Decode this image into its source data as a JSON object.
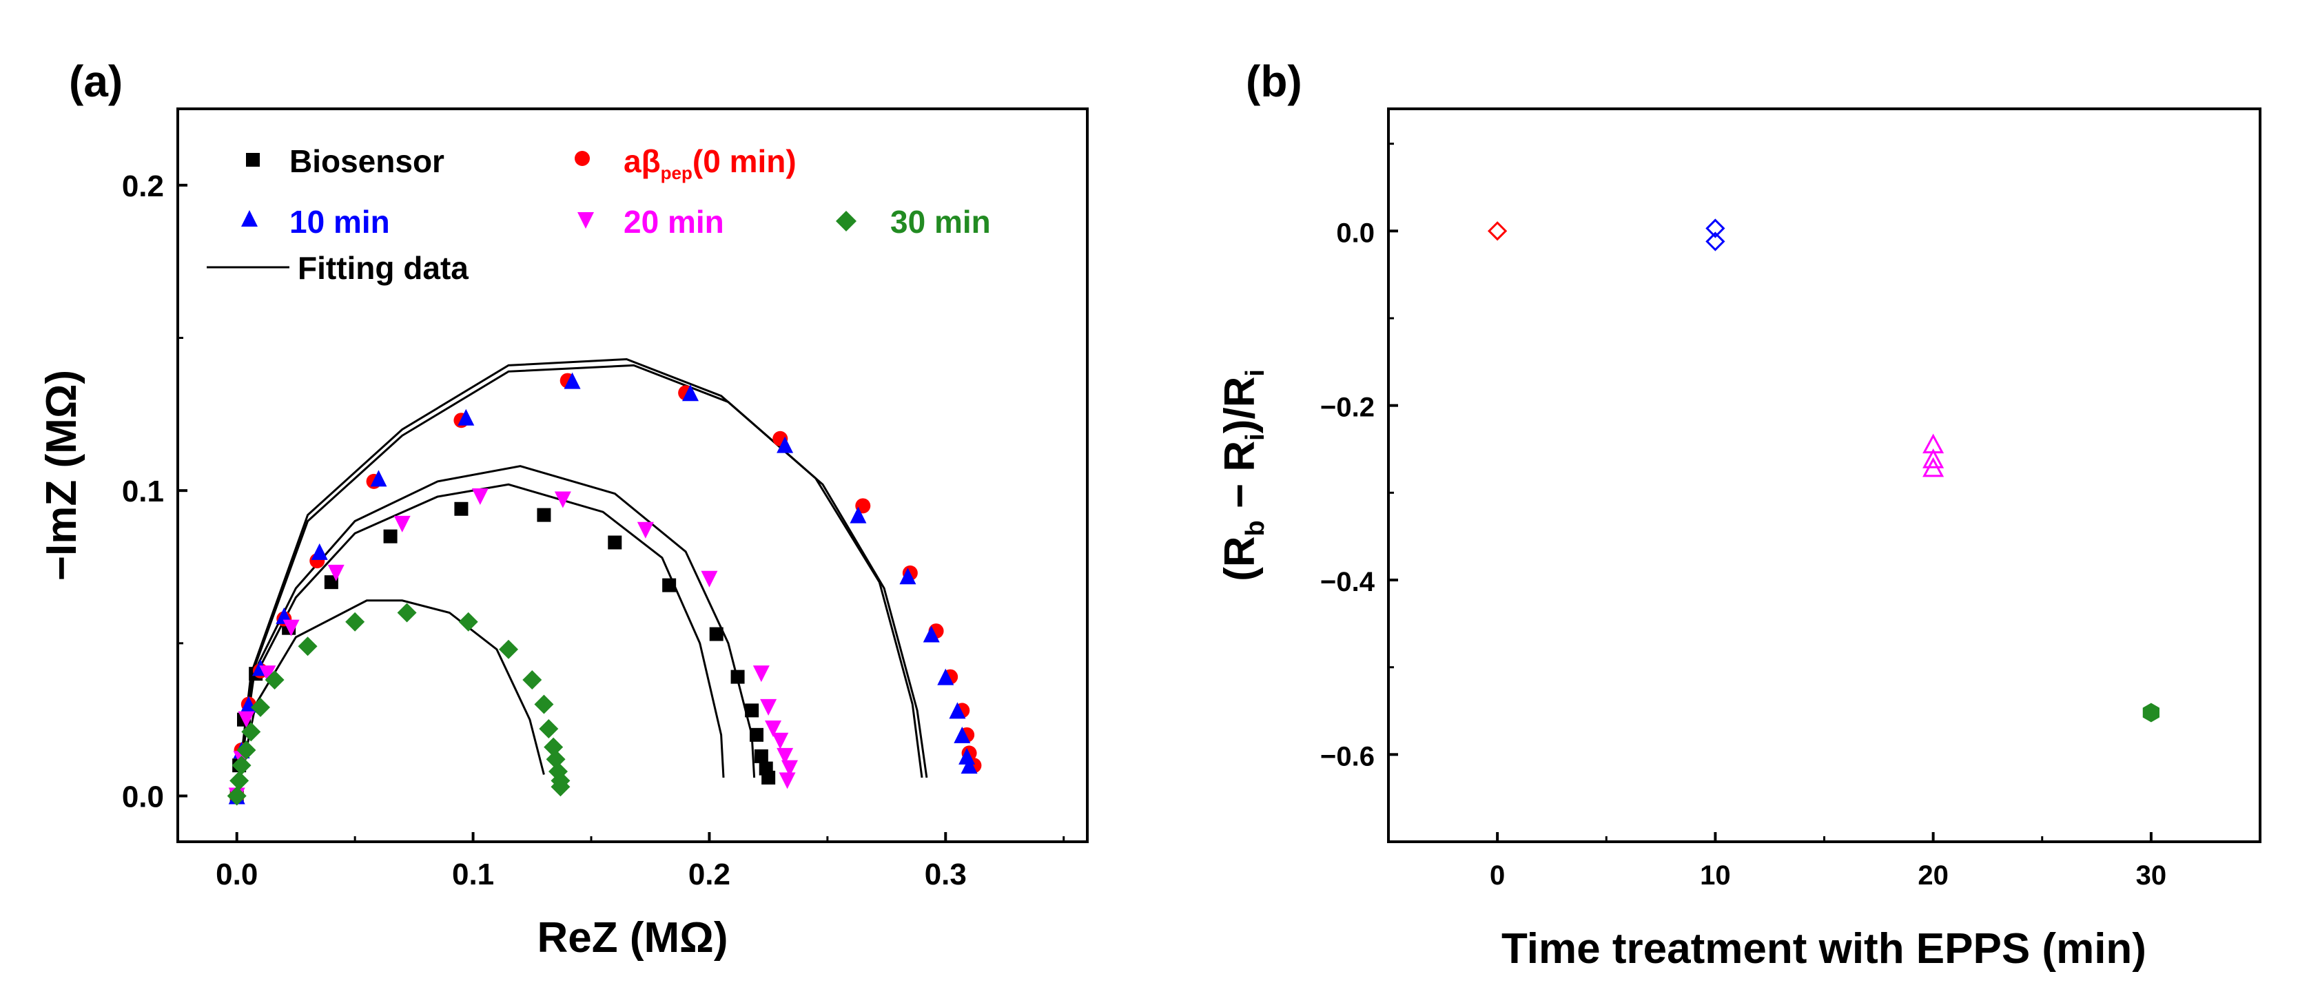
{
  "chart_data": [
    {
      "id": "a",
      "panel_label": "(a)",
      "type": "scatter",
      "xlabel": "ReZ (MΩ)",
      "ylabel": "−ImZ (MΩ)",
      "xlim": [
        -0.025,
        0.36
      ],
      "ylim": [
        -0.015,
        0.225
      ],
      "xticks": [
        0.0,
        0.1,
        0.2,
        0.3
      ],
      "xtick_labels": [
        "0.0",
        "0.1",
        "0.2",
        "0.3"
      ],
      "yticks": [
        0.0,
        0.1,
        0.2
      ],
      "ytick_labels": [
        "0.0",
        "0.1",
        "0.2"
      ],
      "legend": {
        "biosensor": "Biosensor",
        "abeta_main": "aβ",
        "abeta_sub": "pep",
        "abeta_tail": "(0 min)",
        "t10": "10 min",
        "t20": "20 min",
        "t30": "30 min",
        "fit": "Fitting data"
      },
      "series": [
        {
          "name": "Biosensor",
          "marker": "square",
          "color": "#000000",
          "points": [
            [
              0.0,
              0.0
            ],
            [
              0.001,
              0.01
            ],
            [
              0.003,
              0.025
            ],
            [
              0.008,
              0.04
            ],
            [
              0.022,
              0.055
            ],
            [
              0.04,
              0.07
            ],
            [
              0.065,
              0.085
            ],
            [
              0.095,
              0.094
            ],
            [
              0.13,
              0.092
            ],
            [
              0.16,
              0.083
            ],
            [
              0.183,
              0.069
            ],
            [
              0.203,
              0.053
            ],
            [
              0.212,
              0.039
            ],
            [
              0.218,
              0.028
            ],
            [
              0.22,
              0.02
            ],
            [
              0.222,
              0.013
            ],
            [
              0.224,
              0.009
            ],
            [
              0.225,
              0.006
            ]
          ]
        },
        {
          "name": "aβpep(0 min)",
          "marker": "circle",
          "color": "#ff0000",
          "points": [
            [
              0.0,
              0.0
            ],
            [
              0.002,
              0.015
            ],
            [
              0.005,
              0.03
            ],
            [
              0.01,
              0.041
            ],
            [
              0.02,
              0.058
            ],
            [
              0.034,
              0.077
            ],
            [
              0.058,
              0.103
            ],
            [
              0.095,
              0.123
            ],
            [
              0.14,
              0.136
            ],
            [
              0.19,
              0.132
            ],
            [
              0.23,
              0.117
            ],
            [
              0.265,
              0.095
            ],
            [
              0.285,
              0.073
            ],
            [
              0.296,
              0.054
            ],
            [
              0.302,
              0.039
            ],
            [
              0.307,
              0.028
            ],
            [
              0.309,
              0.02
            ],
            [
              0.31,
              0.014
            ],
            [
              0.312,
              0.01
            ]
          ]
        },
        {
          "name": "10 min",
          "marker": "triangle-up",
          "color": "#0000ff",
          "points": [
            [
              0.0,
              0.0
            ],
            [
              0.002,
              0.015
            ],
            [
              0.005,
              0.03
            ],
            [
              0.01,
              0.042
            ],
            [
              0.02,
              0.059
            ],
            [
              0.035,
              0.08
            ],
            [
              0.06,
              0.104
            ],
            [
              0.097,
              0.124
            ],
            [
              0.142,
              0.136
            ],
            [
              0.192,
              0.132
            ],
            [
              0.232,
              0.115
            ],
            [
              0.263,
              0.092
            ],
            [
              0.284,
              0.072
            ],
            [
              0.294,
              0.053
            ],
            [
              0.3,
              0.039
            ],
            [
              0.305,
              0.028
            ],
            [
              0.307,
              0.02
            ],
            [
              0.309,
              0.013
            ],
            [
              0.31,
              0.01
            ]
          ]
        },
        {
          "name": "20 min",
          "marker": "triangle-down",
          "color": "#ff00ff",
          "points": [
            [
              0.0,
              0.0
            ],
            [
              0.002,
              0.012
            ],
            [
              0.004,
              0.025
            ],
            [
              0.013,
              0.04
            ],
            [
              0.023,
              0.055
            ],
            [
              0.042,
              0.073
            ],
            [
              0.07,
              0.089
            ],
            [
              0.103,
              0.098
            ],
            [
              0.138,
              0.097
            ],
            [
              0.173,
              0.087
            ],
            [
              0.2,
              0.071
            ],
            [
              0.222,
              0.04
            ],
            [
              0.225,
              0.029
            ],
            [
              0.227,
              0.022
            ],
            [
              0.23,
              0.018
            ],
            [
              0.232,
              0.013
            ],
            [
              0.234,
              0.009
            ],
            [
              0.233,
              0.005
            ]
          ]
        },
        {
          "name": "30 min",
          "marker": "diamond",
          "color": "#228b22",
          "points": [
            [
              0.0,
              0.0
            ],
            [
              0.001,
              0.005
            ],
            [
              0.002,
              0.01
            ],
            [
              0.004,
              0.015
            ],
            [
              0.006,
              0.021
            ],
            [
              0.01,
              0.029
            ],
            [
              0.016,
              0.038
            ],
            [
              0.03,
              0.049
            ],
            [
              0.05,
              0.057
            ],
            [
              0.072,
              0.06
            ],
            [
              0.098,
              0.057
            ],
            [
              0.115,
              0.048
            ],
            [
              0.125,
              0.038
            ],
            [
              0.13,
              0.03
            ],
            [
              0.132,
              0.022
            ],
            [
              0.134,
              0.016
            ],
            [
              0.135,
              0.012
            ],
            [
              0.136,
              0.008
            ],
            [
              0.137,
              0.005
            ],
            [
              0.137,
              0.003
            ]
          ]
        }
      ],
      "fit_lines": [
        {
          "name": "fit-outer-a",
          "points": [
            [
              0.0,
              0.0
            ],
            [
              0.006,
              0.04
            ],
            [
              0.03,
              0.092
            ],
            [
              0.07,
              0.12
            ],
            [
              0.115,
              0.141
            ],
            [
              0.165,
              0.143
            ],
            [
              0.205,
              0.131
            ],
            [
              0.245,
              0.104
            ],
            [
              0.272,
              0.07
            ],
            [
              0.286,
              0.03
            ],
            [
              0.29,
              0.006
            ]
          ]
        },
        {
          "name": "fit-outer-b",
          "points": [
            [
              0.0,
              0.0
            ],
            [
              0.006,
              0.039
            ],
            [
              0.03,
              0.09
            ],
            [
              0.07,
              0.118
            ],
            [
              0.115,
              0.139
            ],
            [
              0.168,
              0.141
            ],
            [
              0.208,
              0.129
            ],
            [
              0.248,
              0.102
            ],
            [
              0.274,
              0.068
            ],
            [
              0.288,
              0.028
            ],
            [
              0.292,
              0.006
            ]
          ]
        },
        {
          "name": "fit-mid-a",
          "points": [
            [
              0.0,
              0.0
            ],
            [
              0.007,
              0.04
            ],
            [
              0.025,
              0.068
            ],
            [
              0.05,
              0.09
            ],
            [
              0.085,
              0.103
            ],
            [
              0.12,
              0.108
            ],
            [
              0.16,
              0.099
            ],
            [
              0.19,
              0.08
            ],
            [
              0.208,
              0.05
            ],
            [
              0.218,
              0.02
            ],
            [
              0.219,
              0.006
            ]
          ]
        },
        {
          "name": "fit-mid-b",
          "points": [
            [
              0.0,
              0.0
            ],
            [
              0.007,
              0.038
            ],
            [
              0.025,
              0.065
            ],
            [
              0.05,
              0.086
            ],
            [
              0.085,
              0.098
            ],
            [
              0.115,
              0.102
            ],
            [
              0.155,
              0.093
            ],
            [
              0.18,
              0.078
            ],
            [
              0.196,
              0.05
            ],
            [
              0.205,
              0.02
            ],
            [
              0.206,
              0.006
            ]
          ]
        },
        {
          "name": "fit-inner",
          "points": [
            [
              0.0,
              0.0
            ],
            [
              0.008,
              0.03
            ],
            [
              0.025,
              0.052
            ],
            [
              0.055,
              0.064
            ],
            [
              0.07,
              0.064
            ],
            [
              0.09,
              0.06
            ],
            [
              0.11,
              0.048
            ],
            [
              0.124,
              0.025
            ],
            [
              0.13,
              0.007
            ]
          ]
        }
      ]
    },
    {
      "id": "b",
      "panel_label": "(b)",
      "type": "scatter",
      "xlabel": "Time treatment with EPPS (min)",
      "ylabel_main": "(R",
      "ylabel_sub_b": "b",
      "ylabel_mid": " − R",
      "ylabel_sub_i": "i",
      "ylabel_tail": ")/R",
      "xlim": [
        -5,
        35
      ],
      "ylim": [
        -0.7,
        0.14
      ],
      "xticks": [
        0,
        10,
        20,
        30
      ],
      "xtick_labels": [
        "0",
        "10",
        "20",
        "30"
      ],
      "yticks": [
        0.0,
        -0.2,
        -0.4,
        -0.6
      ],
      "ytick_labels": [
        "0.0",
        "−0.2",
        "−0.4",
        "−0.6"
      ],
      "series": [
        {
          "name": "0 min",
          "marker": "diamond-open",
          "color": "#ff0000",
          "points": [
            [
              0,
              0.0
            ]
          ]
        },
        {
          "name": "10 min",
          "marker": "diamond-open",
          "color": "#0000ff",
          "points": [
            [
              10,
              0.003
            ],
            [
              10,
              -0.012
            ]
          ]
        },
        {
          "name": "20 min",
          "marker": "triangle-open",
          "color": "#ff00ff",
          "points": [
            [
              20,
              -0.245
            ],
            [
              20,
              -0.262
            ],
            [
              20,
              -0.272
            ]
          ]
        },
        {
          "name": "30 min",
          "marker": "hexagon-filled",
          "color": "#228b22",
          "points": [
            [
              30,
              -0.552
            ]
          ]
        }
      ]
    }
  ]
}
